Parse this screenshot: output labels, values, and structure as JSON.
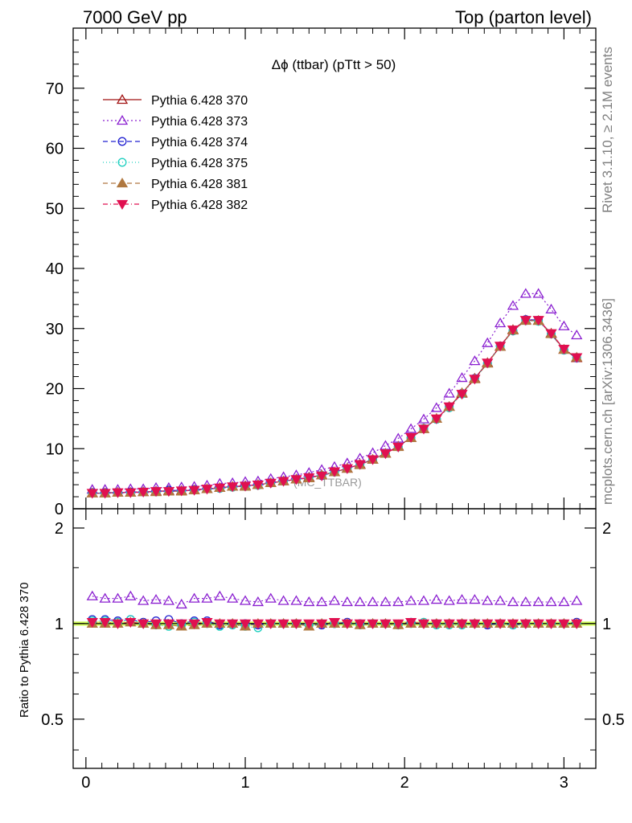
{
  "header": {
    "energy": "7000 GeV pp",
    "process": "Top (parton level)"
  },
  "side_labels": {
    "rivet": "Rivet 3.1.10, ≥ 2.1M events",
    "mcplots": "mcplots.cern.ch [arXiv:1306.3436]"
  },
  "watermark": "(MC_TTBAR)",
  "chart_data": [
    {
      "type": "line",
      "title": "Δϕ (ttbar) (pTtt > 50)",
      "xlim": [
        -0.08,
        3.2
      ],
      "ylim": [
        0,
        80
      ],
      "yticks": [
        0,
        10,
        20,
        30,
        40,
        50,
        60,
        70
      ],
      "ytick_labels": [
        "0",
        "10",
        "20",
        "30",
        "40",
        "50",
        "60",
        "70"
      ],
      "x": [
        0.04,
        0.12,
        0.2,
        0.28,
        0.36,
        0.44,
        0.52,
        0.6,
        0.68,
        0.76,
        0.84,
        0.92,
        1.0,
        1.08,
        1.16,
        1.24,
        1.32,
        1.4,
        1.48,
        1.56,
        1.64,
        1.72,
        1.8,
        1.88,
        1.96,
        2.04,
        2.12,
        2.2,
        2.28,
        2.36,
        2.44,
        2.52,
        2.6,
        2.68,
        2.76,
        2.84,
        2.92,
        3.0,
        3.08
      ],
      "legend_position": "top-left",
      "series": [
        {
          "name": "Pythia 6.428 370",
          "color": "#a01010",
          "marker": "triangle-open",
          "dash": "none",
          "values": [
            2.6,
            2.6,
            2.7,
            2.7,
            2.8,
            2.9,
            3.0,
            3.0,
            3.1,
            3.3,
            3.5,
            3.7,
            3.8,
            4.0,
            4.3,
            4.6,
            4.9,
            5.2,
            5.6,
            6.1,
            6.7,
            7.4,
            8.2,
            9.2,
            10.4,
            11.8,
            13.3,
            15.0,
            17.0,
            19.2,
            21.7,
            24.3,
            27.0,
            29.8,
            31.4,
            31.3,
            29.2,
            26.5,
            25.1
          ]
        },
        {
          "name": "Pythia 6.428 373",
          "color": "#8a1fd0",
          "marker": "triangle-open",
          "dash": "2,3",
          "values": [
            3.2,
            3.2,
            3.2,
            3.3,
            3.3,
            3.5,
            3.5,
            3.6,
            3.7,
            3.9,
            4.2,
            4.3,
            4.5,
            4.6,
            5.0,
            5.3,
            5.6,
            6.0,
            6.5,
            7.0,
            7.6,
            8.4,
            9.3,
            10.5,
            11.7,
            13.3,
            14.9,
            16.8,
            19.2,
            21.8,
            24.6,
            27.6,
            30.9,
            33.8,
            35.8,
            35.8,
            33.2,
            30.4,
            28.9
          ]
        },
        {
          "name": "Pythia 6.428 374",
          "color": "#2020d0",
          "marker": "circle-open",
          "dash": "6,4",
          "values": [
            2.7,
            2.7,
            2.7,
            2.8,
            2.8,
            2.9,
            3.1,
            3.0,
            3.2,
            3.3,
            3.4,
            3.6,
            3.8,
            4.0,
            4.3,
            4.6,
            4.9,
            5.2,
            5.5,
            6.1,
            6.7,
            7.4,
            8.2,
            9.2,
            10.3,
            11.8,
            13.3,
            14.9,
            17.0,
            19.2,
            21.7,
            24.2,
            27.1,
            29.6,
            31.5,
            31.4,
            29.1,
            26.4,
            25.1
          ]
        },
        {
          "name": "Pythia 6.428 375",
          "color": "#20d0c0",
          "marker": "circle-open",
          "dash": "1,3",
          "values": [
            2.6,
            2.6,
            2.7,
            2.7,
            2.8,
            2.8,
            2.9,
            3.0,
            3.1,
            3.3,
            3.4,
            3.6,
            3.7,
            3.9,
            4.3,
            4.6,
            4.9,
            5.2,
            5.6,
            6.1,
            6.7,
            7.3,
            8.2,
            9.2,
            10.3,
            11.8,
            13.4,
            14.9,
            16.8,
            19.1,
            21.6,
            24.2,
            27.0,
            29.6,
            31.3,
            31.2,
            29.1,
            26.4,
            25.2
          ]
        },
        {
          "name": "Pythia 6.428 381",
          "color": "#b07840",
          "marker": "triangle-filled",
          "dash": "6,4",
          "values": [
            2.6,
            2.6,
            2.7,
            2.7,
            2.8,
            2.8,
            2.9,
            2.9,
            3.1,
            3.3,
            3.5,
            3.7,
            3.7,
            4.0,
            4.3,
            4.6,
            4.9,
            5.1,
            5.6,
            6.1,
            6.7,
            7.3,
            8.2,
            9.2,
            10.3,
            11.8,
            13.3,
            15.0,
            17.0,
            19.3,
            21.6,
            24.2,
            27.0,
            29.7,
            31.3,
            31.3,
            29.1,
            26.5,
            25.2
          ]
        },
        {
          "name": "Pythia 6.428 382",
          "color": "#e01050",
          "marker": "triangle-down-filled",
          "dash": "6,3,1,3",
          "values": [
            2.6,
            2.6,
            2.7,
            2.7,
            2.8,
            2.9,
            2.9,
            3.0,
            3.1,
            3.3,
            3.5,
            3.7,
            3.8,
            4.0,
            4.3,
            4.6,
            4.9,
            5.2,
            5.5,
            6.2,
            6.7,
            7.4,
            8.2,
            9.2,
            10.3,
            11.9,
            13.3,
            15.0,
            17.0,
            19.1,
            21.6,
            24.3,
            27.1,
            29.8,
            31.4,
            31.4,
            29.2,
            26.6,
            25.2
          ]
        }
      ]
    },
    {
      "type": "line",
      "ylabel": "Ratio to Pythia 6.428 370",
      "xlim": [
        -0.08,
        3.2
      ],
      "ylim": [
        0.35,
        2.3
      ],
      "xticks": [
        0,
        1,
        2,
        3
      ],
      "xtick_labels": [
        "0",
        "1",
        "2",
        "3"
      ],
      "yticks": [
        0.5,
        1,
        2
      ],
      "ytick_labels": [
        "0.5",
        "1",
        "2"
      ],
      "reference_band_color": "#d4ff5a",
      "series": [
        {
          "name": "Pythia 6.428 373",
          "values": [
            1.22,
            1.2,
            1.2,
            1.22,
            1.18,
            1.19,
            1.18,
            1.15,
            1.2,
            1.2,
            1.22,
            1.2,
            1.18,
            1.17,
            1.2,
            1.18,
            1.18,
            1.17,
            1.17,
            1.18,
            1.17,
            1.17,
            1.17,
            1.17,
            1.17,
            1.18,
            1.18,
            1.19,
            1.18,
            1.19,
            1.19,
            1.18,
            1.18,
            1.17,
            1.17,
            1.17,
            1.17,
            1.17,
            1.18
          ]
        },
        {
          "name": "Pythia 6.428 374",
          "values": [
            1.03,
            1.03,
            1.02,
            1.03,
            1.01,
            1.02,
            1.03,
            1.0,
            1.02,
            1.02,
            0.99,
            1.0,
            1.0,
            0.99,
            1.0,
            1.0,
            1.0,
            0.99,
            0.99,
            1.0,
            1.01,
            1.0,
            1.0,
            1.0,
            0.99,
            1.01,
            1.0,
            1.0,
            1.0,
            1.0,
            1.0,
            0.99,
            1.0,
            0.99,
            1.0,
            1.0,
            1.0,
            1.0,
            1.01
          ]
        },
        {
          "name": "Pythia 6.428 375",
          "values": [
            1.02,
            1.02,
            1.01,
            1.03,
            1.0,
            0.99,
            0.98,
            0.99,
            1.01,
            1.0,
            0.98,
            0.99,
            0.98,
            0.97,
            1.0,
            1.0,
            1.0,
            0.99,
            1.0,
            1.0,
            1.0,
            0.99,
            1.0,
            1.0,
            0.99,
            1.0,
            1.01,
            0.99,
            0.99,
            0.99,
            1.0,
            1.0,
            1.0,
            0.99,
            1.0,
            1.0,
            1.0,
            1.0,
            1.0
          ]
        },
        {
          "name": "Pythia 6.428 381",
          "values": [
            1.0,
            1.0,
            1.0,
            1.01,
            1.0,
            0.99,
            0.99,
            0.98,
            0.99,
            1.0,
            1.0,
            1.0,
            0.98,
            1.0,
            1.0,
            1.0,
            1.0,
            0.98,
            1.0,
            1.0,
            1.0,
            0.99,
            1.0,
            1.0,
            0.99,
            1.0,
            1.0,
            1.0,
            1.0,
            1.0,
            1.0,
            1.0,
            1.0,
            1.0,
            1.0,
            1.0,
            1.0,
            1.0,
            1.0
          ]
        },
        {
          "name": "Pythia 6.428 382",
          "values": [
            1.01,
            1.01,
            1.0,
            1.01,
            1.0,
            1.0,
            1.0,
            1.0,
            1.0,
            1.01,
            1.0,
            1.0,
            1.0,
            1.0,
            1.0,
            1.0,
            1.0,
            1.0,
            1.0,
            1.01,
            1.0,
            1.0,
            1.0,
            1.0,
            1.0,
            1.01,
            1.0,
            1.0,
            1.0,
            1.0,
            1.0,
            1.0,
            1.0,
            1.0,
            1.0,
            1.0,
            1.0,
            1.0,
            1.0
          ]
        }
      ]
    }
  ]
}
